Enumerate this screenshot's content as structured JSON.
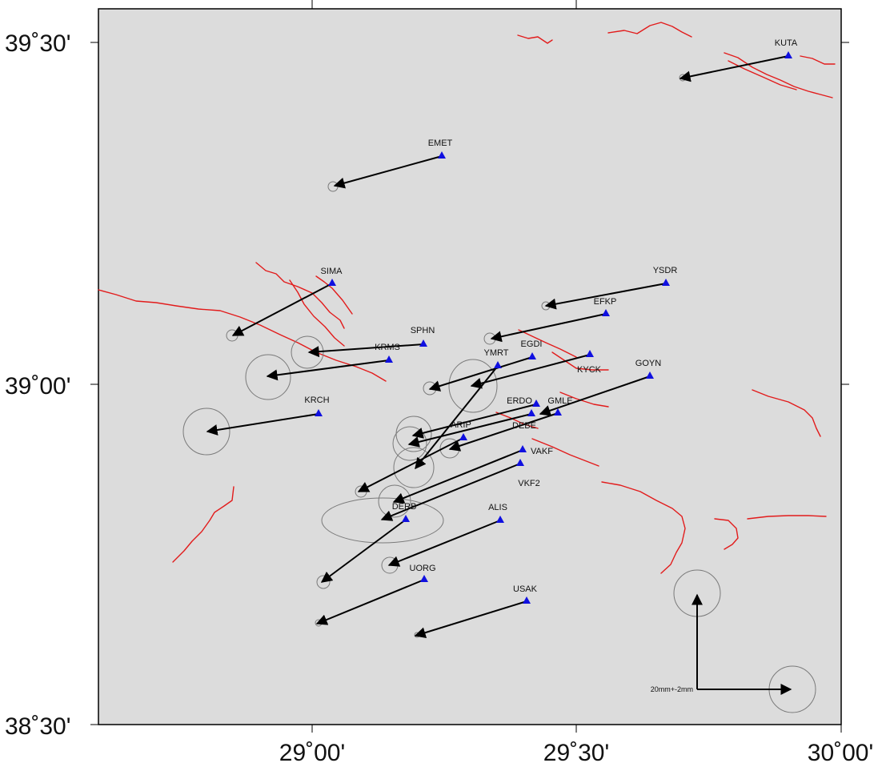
{
  "map": {
    "lat_labels": [
      "39˚30'",
      "39˚00'",
      "38˚30'"
    ],
    "lon_labels": [
      "29˚00'",
      "29˚30'",
      "30˚00'"
    ],
    "scale_label": "20mm+-2mm",
    "colors": {
      "background": "#dcdcdc",
      "fault": "#e21b1b",
      "station": "#1010e0",
      "vector": "#000000",
      "ellipse": "#7a7a7a"
    },
    "stations": [
      {
        "name": "KUTA"
      },
      {
        "name": "EMET"
      },
      {
        "name": "SIMA"
      },
      {
        "name": "YSDR"
      },
      {
        "name": "EFKP"
      },
      {
        "name": "SPHN"
      },
      {
        "name": "EGDI"
      },
      {
        "name": "KRMS"
      },
      {
        "name": "YMRT"
      },
      {
        "name": "KYCK"
      },
      {
        "name": "GOYN"
      },
      {
        "name": "KRCH"
      },
      {
        "name": "ERDO"
      },
      {
        "name": "GMLE"
      },
      {
        "name": "DEBE"
      },
      {
        "name": "ARIP"
      },
      {
        "name": "VAKF"
      },
      {
        "name": "VKF2"
      },
      {
        "name": "DERB"
      },
      {
        "name": "ALIS"
      },
      {
        "name": "UORG"
      },
      {
        "name": "USAK"
      }
    ]
  }
}
